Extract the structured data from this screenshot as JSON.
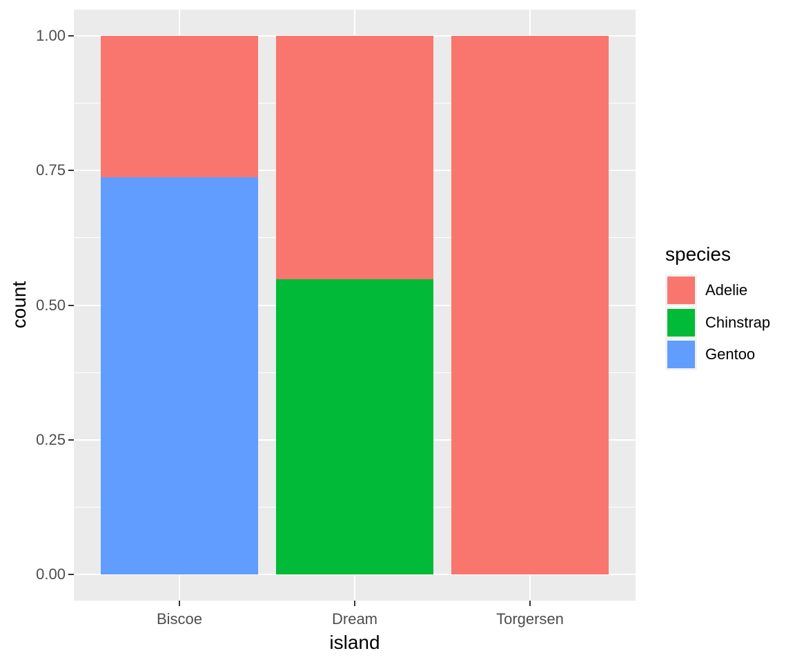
{
  "style": {
    "figure_background": "#FFFFFF",
    "panel_background": "#EBEBEB",
    "grid_color": "#FFFFFF",
    "tick_mark_color": "#333333",
    "tick_label_color": "#4D4D4D",
    "axis_title_color": "#000000",
    "legend_key_background": "#F2F2F2"
  },
  "chart_data": {
    "type": "bar",
    "subtype": "stacked-fill-proportion",
    "title": "",
    "xlabel": "island",
    "ylabel": "count",
    "categories": [
      "Biscoe",
      "Dream",
      "Torgersen"
    ],
    "series": [
      {
        "name": "Adelie",
        "color": "#F8766D",
        "values": [
          0.262,
          0.452,
          1.0
        ]
      },
      {
        "name": "Chinstrap",
        "color": "#00BA38",
        "values": [
          0.0,
          0.548,
          0.0
        ]
      },
      {
        "name": "Gentoo",
        "color": "#619CFF",
        "values": [
          0.738,
          0.0,
          0.0
        ]
      }
    ],
    "stack_order_bottom_to_top": [
      "Gentoo",
      "Chinstrap",
      "Adelie"
    ],
    "ylim": [
      0,
      1
    ],
    "y_ticks": [
      {
        "label": "0.00",
        "value": 0.0
      },
      {
        "label": "0.25",
        "value": 0.25
      },
      {
        "label": "0.50",
        "value": 0.5
      },
      {
        "label": "0.75",
        "value": 0.75
      },
      {
        "label": "1.00",
        "value": 1.0
      }
    ],
    "y_minor_ticks": [
      0.125,
      0.375,
      0.625,
      0.875
    ],
    "grid": "on",
    "legend": {
      "title": "species",
      "position": "right",
      "entries": [
        {
          "label": "Adelie",
          "color": "#F8766D"
        },
        {
          "label": "Chinstrap",
          "color": "#00BA38"
        },
        {
          "label": "Gentoo",
          "color": "#619CFF"
        }
      ]
    }
  }
}
